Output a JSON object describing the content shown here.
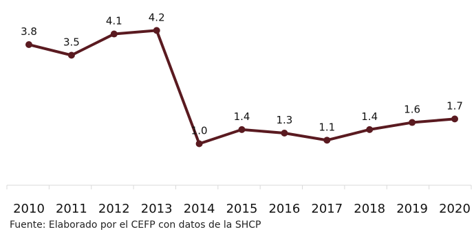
{
  "chart_data": {
    "type": "line",
    "categories": [
      "2010",
      "2011",
      "2012",
      "2013",
      "2014",
      "2015",
      "2016",
      "2017",
      "2018",
      "2019",
      "2020"
    ],
    "values": [
      3.8,
      3.5,
      4.1,
      4.2,
      1.0,
      1.4,
      1.3,
      1.1,
      1.4,
      1.6,
      1.7
    ],
    "data_labels": [
      "3.8",
      "3.5",
      "4.1",
      "4.2",
      "1.0",
      "1.4",
      "1.3",
      "1.1",
      "1.4",
      "1.6",
      "1.7"
    ],
    "title": "",
    "xlabel": "",
    "ylabel": "",
    "grid": false,
    "legend": "none",
    "color": "#5a1a20"
  },
  "source_note": "Fuente: Elaborado por el CEFP con datos de la SHCP"
}
